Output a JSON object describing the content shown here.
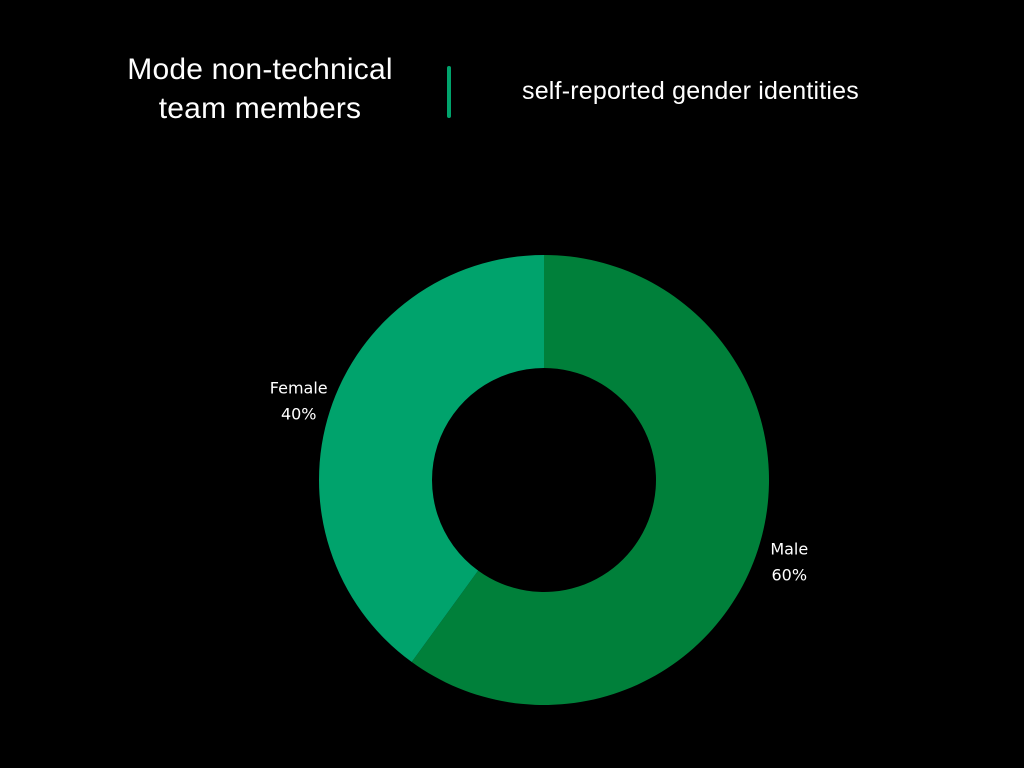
{
  "header": {
    "title_lines": [
      "Mode non-technical",
      "team members"
    ],
    "subtitle": "self-reported gender identities"
  },
  "colors": {
    "background": "#000000",
    "divider": "#00a36c",
    "text": "#ffffff"
  },
  "chart_data": {
    "type": "pie",
    "style": "donut",
    "title": "",
    "legend": "none",
    "start_angle_deg": 0,
    "direction": "clockwise",
    "slices": [
      {
        "label": "Male",
        "value": 60,
        "value_label": "60%",
        "color": "#00803a"
      },
      {
        "label": "Female",
        "value": 40,
        "value_label": "40%",
        "color": "#00a36c"
      }
    ]
  }
}
